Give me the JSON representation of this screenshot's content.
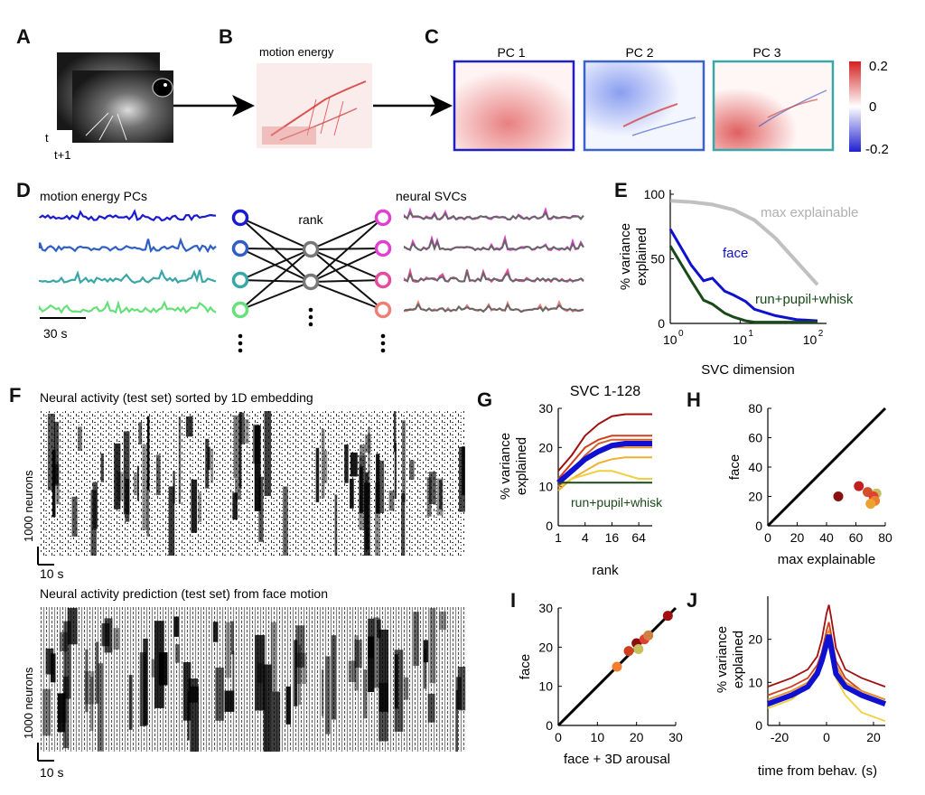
{
  "panels": {
    "A": "A",
    "B": "B",
    "C": "C",
    "D": "D",
    "E": "E",
    "F": "F",
    "G": "G",
    "H": "H",
    "I": "I",
    "J": "J"
  },
  "panelA": {
    "t": "t",
    "t1": "t+1"
  },
  "panelB": {
    "title": "motion energy"
  },
  "panelC": {
    "pcs": [
      {
        "label": "PC 1",
        "color": "#2020c0"
      },
      {
        "label": "PC 2",
        "color": "#3a62c8"
      },
      {
        "label": "PC 3",
        "color": "#3aa8a8"
      }
    ],
    "colorbar": {
      "max": "0.2",
      "mid": "0",
      "min": "-0.2"
    }
  },
  "panelD": {
    "left_title": "motion energy PCs",
    "right_title": "neural SVCs",
    "rank": "rank",
    "scale": "30 s",
    "pc_colors": [
      "#1a1ad0",
      "#2f5fc4",
      "#3aa6a6",
      "#66e07a"
    ],
    "svc_colors": [
      "#e040d0",
      "#e040d0",
      "#e64a9a",
      "#ee7e78"
    ]
  },
  "panelF": {
    "top_title": "Neural activity (test set) sorted by 1D embedding",
    "bottom_title": "Neural activity prediction (test set) from face motion",
    "ylabel": "1000 neurons",
    "scale": "10 s"
  },
  "chart_data": [
    {
      "panel": "E",
      "type": "line",
      "xlabel": "SVC dimension",
      "ylabel": "% variance explained",
      "xscale": "log",
      "xlim": [
        1,
        128
      ],
      "ylim": [
        0,
        100
      ],
      "yticks": [
        "0",
        "50",
        "100"
      ],
      "series": [
        {
          "name": "max explainable",
          "color": "#b0b0b0",
          "x": [
            1,
            2,
            4,
            8,
            16,
            32,
            64,
            128
          ],
          "y": [
            95,
            94,
            92,
            88,
            80,
            66,
            48,
            30
          ]
        },
        {
          "name": "face",
          "color": "#1010d0",
          "x": [
            1,
            2,
            3,
            4,
            6,
            8,
            12,
            16,
            32,
            64,
            128
          ],
          "y": [
            73,
            45,
            33,
            35,
            25,
            22,
            17,
            11,
            6,
            3,
            2
          ]
        },
        {
          "name": "run+pupil+whisk",
          "color": "#1a4a1a",
          "x": [
            1,
            2,
            3,
            4,
            6,
            8,
            12,
            16,
            32,
            64,
            128
          ],
          "y": [
            60,
            33,
            18,
            15,
            8,
            5,
            2,
            1,
            1,
            1,
            1
          ]
        }
      ]
    },
    {
      "panel": "G",
      "type": "line",
      "title": "SVC 1-128",
      "xlabel": "rank",
      "ylabel": "% variance explained",
      "xscale": "log2",
      "categories": [
        "1",
        "4",
        "16",
        "64"
      ],
      "ylim": [
        0,
        30
      ],
      "yticks": [
        "0",
        "10",
        "20",
        "30"
      ],
      "annotation": "run+pupil+whisk",
      "series": [
        {
          "color": "#a01010",
          "x": [
            1,
            2,
            4,
            8,
            16,
            32,
            64,
            128
          ],
          "y": [
            14,
            18,
            23,
            26,
            28,
            28.5,
            28.5,
            28.5
          ]
        },
        {
          "color": "#d04020",
          "x": [
            1,
            2,
            4,
            8,
            16,
            32,
            64,
            128
          ],
          "y": [
            12,
            16,
            20,
            22,
            23,
            23,
            23,
            23
          ]
        },
        {
          "color": "#e8902a",
          "x": [
            1,
            2,
            4,
            8,
            16,
            32,
            64,
            128
          ],
          "y": [
            11,
            14,
            17,
            19,
            20,
            20,
            20,
            20
          ]
        },
        {
          "color": "#f0b030",
          "x": [
            1,
            2,
            4,
            8,
            16,
            32,
            64,
            128
          ],
          "y": [
            9,
            12,
            14,
            16,
            17,
            17.5,
            17.5,
            17.5
          ]
        },
        {
          "color": "#f0d040",
          "x": [
            1,
            2,
            4,
            8,
            16,
            32,
            64,
            128
          ],
          "y": [
            10,
            12,
            13,
            14,
            14,
            13,
            12,
            12
          ]
        },
        {
          "color": "#d06030",
          "x": [
            1,
            2,
            4,
            8,
            16,
            32,
            64,
            128
          ],
          "y": [
            10,
            14,
            18,
            21,
            22,
            22,
            22,
            22
          ]
        },
        {
          "color": "#1010d0",
          "x": [
            1,
            2,
            4,
            8,
            16,
            32,
            64,
            128
          ],
          "y": [
            11,
            14,
            17,
            19,
            20.5,
            21,
            21,
            21
          ]
        },
        {
          "color": "#1a4a1a",
          "x": [
            1,
            2,
            4,
            8,
            16,
            32,
            64,
            128
          ],
          "y": [
            11,
            11,
            11,
            11,
            11,
            11,
            11,
            11
          ]
        }
      ]
    },
    {
      "panel": "H",
      "type": "scatter",
      "xlabel": "max explainable",
      "ylabel": "face",
      "xlim": [
        0,
        80
      ],
      "ylim": [
        0,
        80
      ],
      "xticks": [
        "0",
        "20",
        "40",
        "60",
        "80"
      ],
      "yticks": [
        "0",
        "20",
        "40",
        "60",
        "80"
      ],
      "points": [
        {
          "x": 48,
          "y": 20,
          "color": "#8a1010"
        },
        {
          "x": 62,
          "y": 27,
          "color": "#c02020"
        },
        {
          "x": 68,
          "y": 23,
          "color": "#d05030"
        },
        {
          "x": 74,
          "y": 22,
          "color": "#c8c060"
        },
        {
          "x": 72,
          "y": 20,
          "color": "#e04030"
        },
        {
          "x": 73,
          "y": 17,
          "color": "#e88030"
        },
        {
          "x": 70,
          "y": 15,
          "color": "#f0a030"
        }
      ]
    },
    {
      "panel": "I",
      "type": "scatter",
      "xlabel": "face + 3D arousal",
      "ylabel": "face",
      "xlim": [
        0,
        30
      ],
      "ylim": [
        0,
        30
      ],
      "xticks": [
        "0",
        "10",
        "20",
        "30"
      ],
      "yticks": [
        "0",
        "10",
        "20",
        "30"
      ],
      "points": [
        {
          "x": 15,
          "y": 15,
          "color": "#f08030"
        },
        {
          "x": 18,
          "y": 19,
          "color": "#d04020"
        },
        {
          "x": 20,
          "y": 21,
          "color": "#8a1010"
        },
        {
          "x": 22,
          "y": 22,
          "color": "#e04030"
        },
        {
          "x": 23,
          "y": 23,
          "color": "#d08040"
        },
        {
          "x": 28,
          "y": 28,
          "color": "#a01010"
        },
        {
          "x": 20.5,
          "y": 19.5,
          "color": "#c8c060"
        }
      ]
    },
    {
      "panel": "J",
      "type": "line",
      "xlabel": "time from behav. (s)",
      "ylabel": "% variance explained",
      "xlim": [
        -25,
        25
      ],
      "ylim": [
        0,
        30
      ],
      "xticks": [
        "-20",
        "0",
        "20"
      ],
      "yticks": [
        "0",
        "10",
        "20"
      ],
      "series": [
        {
          "color": "#a01010",
          "x": [
            -25,
            -15,
            -8,
            -4,
            -2,
            0,
            1,
            2,
            4,
            8,
            15,
            25
          ],
          "y": [
            9,
            11,
            13,
            16,
            20,
            26,
            28,
            25,
            18,
            13,
            11,
            9
          ]
        },
        {
          "color": "#d04020",
          "x": [
            -25,
            -15,
            -8,
            -4,
            -2,
            0,
            1,
            2,
            4,
            8,
            15,
            25
          ],
          "y": [
            7,
            9,
            11,
            14,
            17,
            22,
            24,
            21,
            15,
            11,
            8,
            6
          ]
        },
        {
          "color": "#e8902a",
          "x": [
            -25,
            -15,
            -8,
            -4,
            -2,
            0,
            1,
            2,
            4,
            8,
            15,
            25
          ],
          "y": [
            6,
            8,
            10,
            13,
            16,
            21,
            22,
            20,
            14,
            10,
            8,
            6
          ]
        },
        {
          "color": "#f0d040",
          "x": [
            -25,
            -15,
            -8,
            -4,
            -2,
            0,
            1,
            2,
            4,
            8,
            15,
            25
          ],
          "y": [
            4,
            6,
            9,
            12,
            15,
            18,
            19,
            17,
            11,
            7,
            3,
            1
          ]
        },
        {
          "color": "#1010d0",
          "x": [
            -25,
            -15,
            -8,
            -4,
            -2,
            0,
            1,
            2,
            4,
            8,
            15,
            25
          ],
          "y": [
            5,
            7,
            9,
            12,
            15,
            19,
            21,
            18,
            12,
            9,
            7,
            5
          ]
        }
      ]
    }
  ]
}
